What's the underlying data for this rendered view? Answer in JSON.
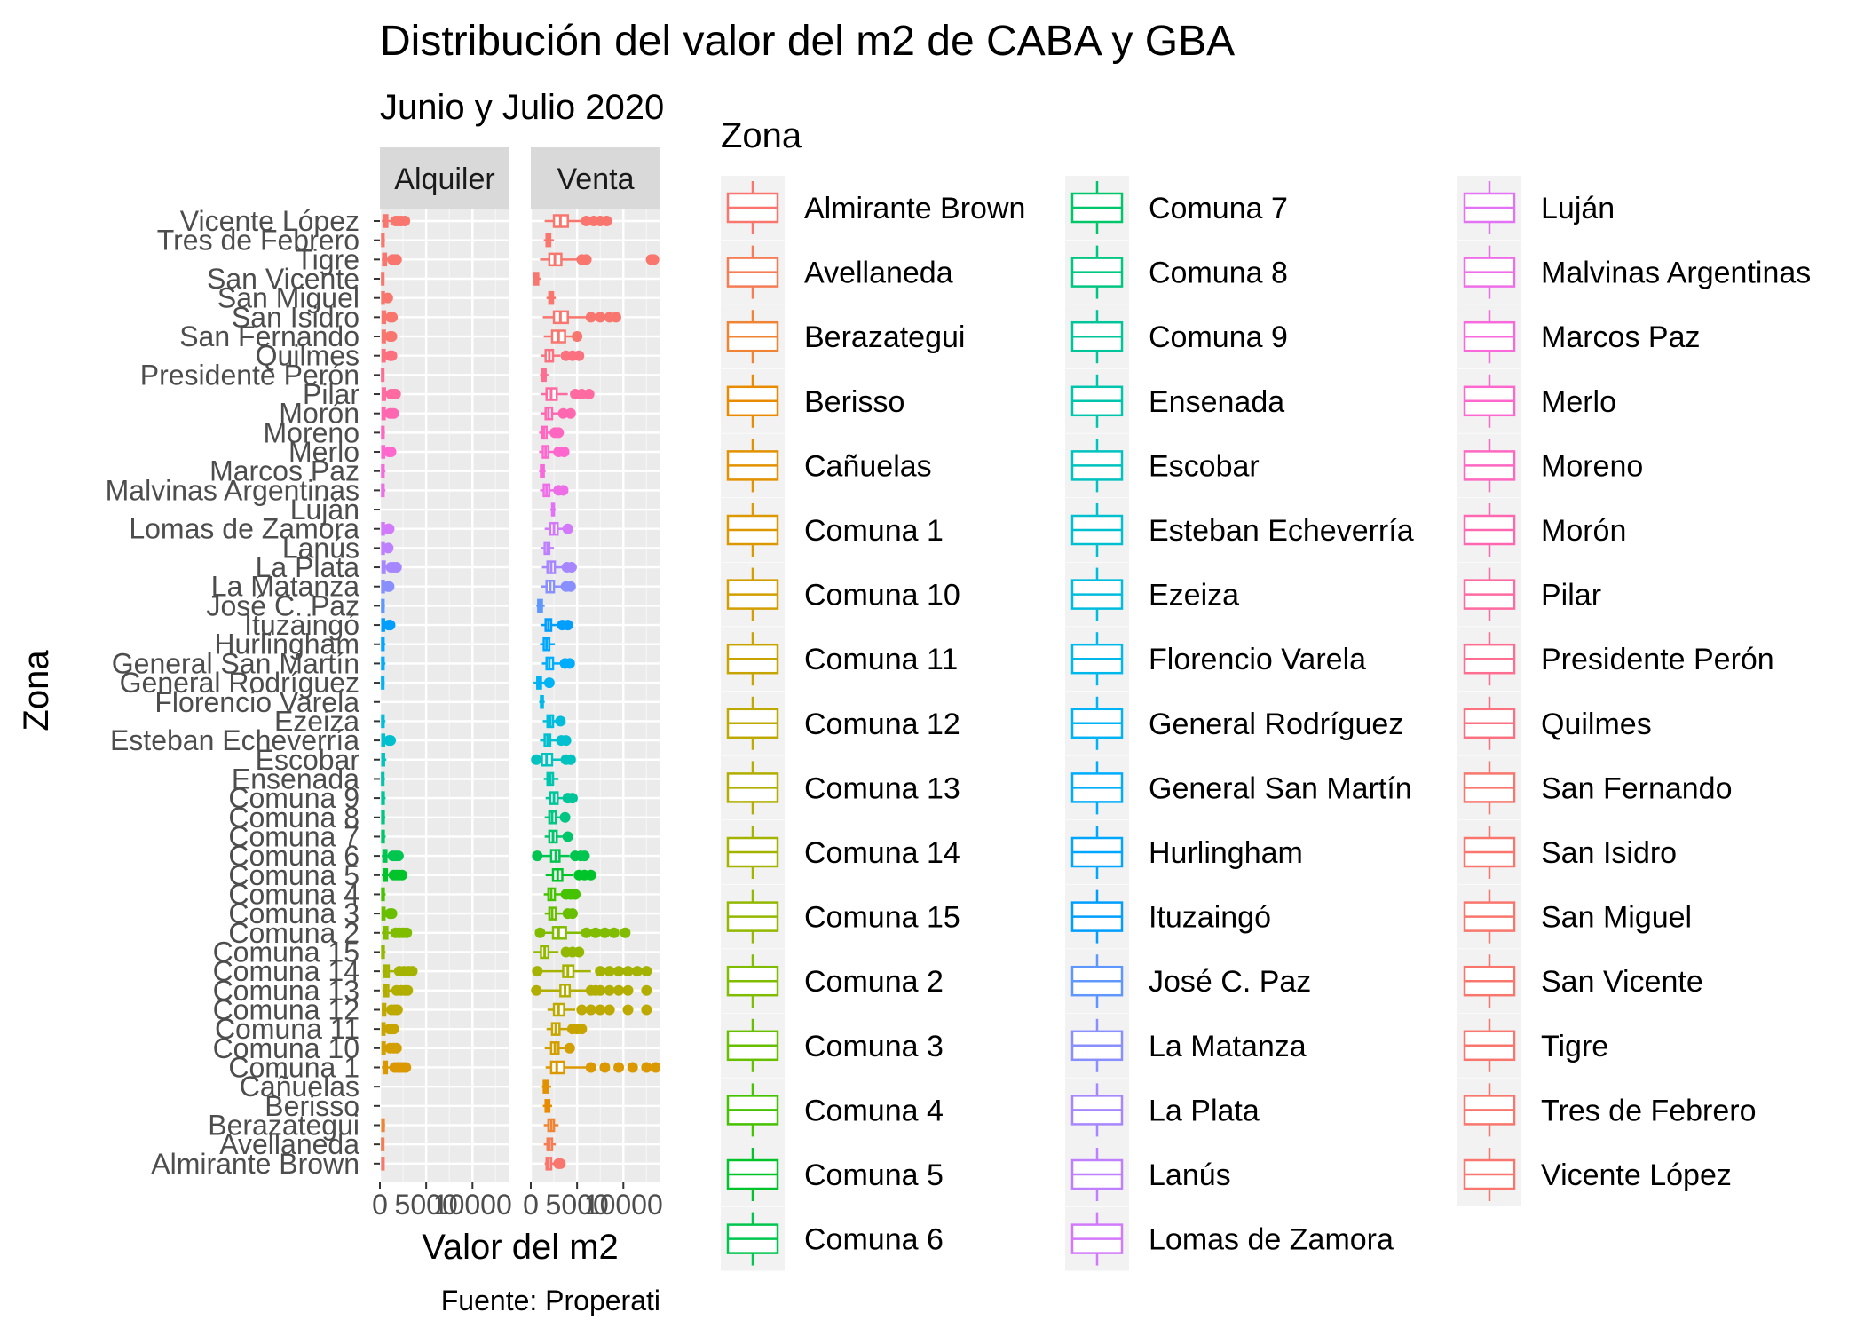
{
  "chart_data": {
    "type": "boxplot",
    "title": "Distribución del valor del m2 de CABA y GBA",
    "subtitle": "Junio y Julio 2020",
    "xlabel": "Valor del m2",
    "ylabel": "Zona",
    "caption": "Fuente: Properati",
    "facets": [
      "Alquiler",
      "Venta"
    ],
    "xlim": [
      0,
      14000
    ],
    "x_ticks": [
      0,
      5000,
      10000
    ],
    "x_tick_labels": [
      "0",
      "5000",
      "10000"
    ],
    "legend": {
      "title": "Zona",
      "position": "right",
      "columns": 3
    },
    "grid": true,
    "categories": [
      "Almirante Brown",
      "Avellaneda",
      "Berazategui",
      "Berisso",
      "Cañuelas",
      "Comuna 1",
      "Comuna 10",
      "Comuna 11",
      "Comuna 12",
      "Comuna 13",
      "Comuna 14",
      "Comuna 15",
      "Comuna 2",
      "Comuna 3",
      "Comuna 4",
      "Comuna 5",
      "Comuna 6",
      "Comuna 7",
      "Comuna 8",
      "Comuna 9",
      "Ensenada",
      "Escobar",
      "Esteban Echeverría",
      "Ezeiza",
      "Florencio Varela",
      "General Rodríguez",
      "General San Martín",
      "Hurlingham",
      "Ituzaingó",
      "José C. Paz",
      "La Matanza",
      "La Plata",
      "Lanús",
      "Lomas de Zamora",
      "Luján",
      "Malvinas Argentinas",
      "Marcos Paz",
      "Merlo",
      "Moreno",
      "Morón",
      "Pilar",
      "Presidente Perón",
      "Quilmes",
      "San Fernando",
      "San Isidro",
      "San Miguel",
      "San Vicente",
      "Tigre",
      "Tres de Febrero",
      "Vicente López"
    ],
    "colors": [
      "#F8766D",
      "#F47D56",
      "#EF8435",
      "#E98B00",
      "#E29200",
      "#DB9800",
      "#D29E00",
      "#C8A400",
      "#BDA900",
      "#B1AE00",
      "#A3B300",
      "#93B800",
      "#80BC00",
      "#68BF00",
      "#45C200",
      "#00C42A",
      "#00C54E",
      "#00C66A",
      "#00C682",
      "#00C598",
      "#00C4AC",
      "#00C2BE",
      "#00BFCE",
      "#00BCDD",
      "#00B8E9",
      "#00B3F4",
      "#00ADFC",
      "#00A6FF",
      "#009EFF",
      "#5F97FF",
      "#898FFF",
      "#A787FF",
      "#BF80FF",
      "#D279FC",
      "#E273F4",
      "#EE6EE8",
      "#F86ADC",
      "#FE68CE",
      "#FF67C0",
      "#FF68B1",
      "#FF6AA1",
      "#FF6D91",
      "#FC717F",
      "#F8766D",
      "#F8766D",
      "#F8766D",
      "#F8766D",
      "#F8766D",
      "#F8766D",
      "#F8766D"
    ],
    "series": [
      {
        "name": "Alquiler",
        "stats": [
          [
            150,
            250,
            320,
            400,
            520,
            []
          ],
          [
            140,
            230,
            300,
            380,
            480,
            []
          ],
          [
            160,
            260,
            330,
            420,
            560,
            []
          ],
          null,
          null,
          [
            200,
            400,
            550,
            750,
            1350,
            [
              1600,
              1900,
              2200,
              2500,
              2800
            ]
          ],
          [
            150,
            280,
            380,
            520,
            880,
            [
              1100,
              1500,
              1800
            ]
          ],
          [
            150,
            280,
            380,
            500,
            850,
            [
              1050,
              1300,
              1500
            ]
          ],
          [
            180,
            320,
            430,
            580,
            1000,
            [
              1250,
              1600,
              1900
            ]
          ],
          [
            250,
            480,
            650,
            900,
            1500,
            [
              1800,
              2300,
              2700,
              3000
            ]
          ],
          [
            250,
            500,
            700,
            950,
            1700,
            [
              2100,
              2600,
              3100,
              3500
            ]
          ],
          [
            150,
            250,
            320,
            420,
            620,
            []
          ],
          [
            200,
            400,
            550,
            800,
            1400,
            [
              1700,
              2100,
              2500,
              2900
            ]
          ],
          [
            150,
            280,
            380,
            500,
            850,
            [
              1100,
              1300
            ]
          ],
          [
            150,
            250,
            320,
            420,
            620,
            []
          ],
          [
            200,
            400,
            550,
            750,
            1200,
            [
              1500,
              1800,
              2100,
              2400
            ]
          ],
          [
            200,
            380,
            520,
            700,
            1100,
            [
              1400,
              1700,
              2000
            ]
          ],
          [
            150,
            250,
            320,
            420,
            620,
            []
          ],
          [
            150,
            250,
            320,
            420,
            600,
            []
          ],
          [
            150,
            250,
            320,
            420,
            620,
            []
          ],
          [
            150,
            230,
            300,
            380,
            550,
            []
          ],
          [
            160,
            260,
            340,
            450,
            700,
            []
          ],
          [
            160,
            260,
            350,
            460,
            800,
            [
              1000,
              1150
            ]
          ],
          [
            150,
            240,
            310,
            400,
            600,
            []
          ],
          null,
          [
            150,
            230,
            300,
            380,
            520,
            []
          ],
          [
            150,
            240,
            310,
            400,
            600,
            []
          ],
          [
            150,
            240,
            310,
            400,
            600,
            []
          ],
          [
            160,
            260,
            340,
            450,
            750,
            [
              950,
              1100
            ]
          ],
          [
            150,
            240,
            310,
            400,
            550,
            []
          ],
          [
            150,
            250,
            330,
            430,
            700,
            [
              850,
              1000
            ]
          ],
          [
            170,
            280,
            380,
            520,
            900,
            [
              1200,
              1500,
              1800
            ]
          ],
          [
            150,
            250,
            330,
            430,
            700,
            [
              900
            ]
          ],
          [
            150,
            250,
            330,
            430,
            700,
            [
              900,
              1000
            ]
          ],
          null,
          [
            150,
            240,
            310,
            400,
            600,
            []
          ],
          [
            150,
            240,
            310,
            400,
            600,
            []
          ],
          [
            160,
            260,
            350,
            460,
            800,
            [
              1000,
              1200
            ]
          ],
          [
            150,
            240,
            310,
            400,
            550,
            []
          ],
          [
            170,
            280,
            380,
            520,
            850,
            [
              1100,
              1300,
              1500
            ]
          ],
          [
            180,
            300,
            400,
            550,
            950,
            [
              1200,
              1500,
              1700
            ]
          ],
          [
            150,
            230,
            300,
            380,
            500,
            []
          ],
          [
            170,
            280,
            380,
            520,
            850,
            [
              1100,
              1300
            ]
          ],
          [
            170,
            290,
            390,
            540,
            900,
            [
              1100,
              1300
            ]
          ],
          [
            170,
            290,
            400,
            560,
            950,
            [
              1150,
              1350
            ]
          ],
          [
            150,
            250,
            330,
            430,
            680,
            [
              850
            ]
          ],
          [
            150,
            230,
            300,
            380,
            500,
            []
          ],
          [
            200,
            350,
            480,
            650,
            1100,
            [
              1350,
              1600,
              1800
            ]
          ],
          [
            150,
            240,
            310,
            400,
            550,
            []
          ],
          [
            200,
            400,
            550,
            800,
            1400,
            [
              1700,
              2000,
              2300,
              2700
            ]
          ]
        ]
      },
      {
        "name": "Venta",
        "stats": [
          [
            1500,
            1700,
            1900,
            2200,
            2700,
            [
              3000,
              3200
            ]
          ],
          [
            1400,
            1800,
            2000,
            2300,
            2700,
            []
          ],
          [
            1400,
            1900,
            2200,
            2500,
            3000,
            []
          ],
          [
            1300,
            1600,
            1800,
            2000,
            2300,
            []
          ],
          [
            1200,
            1400,
            1600,
            1800,
            2200,
            []
          ],
          [
            1600,
            2200,
            2800,
            3600,
            6000,
            [
              6500,
              8000,
              9500,
              11000,
              12500,
              13500
            ]
          ],
          [
            1500,
            2200,
            2600,
            3000,
            3800,
            [
              4200
            ]
          ],
          [
            1700,
            2300,
            2700,
            3100,
            4000,
            [
              4500,
              5000,
              5500
            ]
          ],
          [
            1800,
            2500,
            3000,
            3600,
            4800,
            [
              5500,
              6500,
              7500,
              8500,
              10500,
              12500
            ]
          ],
          [
            400,
            3200,
            3700,
            4200,
            6000,
            [
              600,
              6500,
              7000,
              7500,
              8500,
              9500,
              10500,
              12500
            ]
          ],
          [
            500,
            3500,
            4000,
            4600,
            6500,
            [
              700,
              7500,
              8500,
              9500,
              10500,
              11500,
              12500
            ]
          ],
          [
            300,
            1100,
            1500,
            1900,
            3000,
            [
              3800,
              4500,
              5200
            ]
          ],
          [
            700,
            2400,
            3000,
            3800,
            5500,
            [
              1000,
              6000,
              7000,
              8000,
              9000,
              10200
            ]
          ],
          [
            1500,
            2000,
            2300,
            2700,
            3500,
            [
              4000,
              4500
            ]
          ],
          [
            1400,
            1900,
            2200,
            2600,
            3300,
            [
              3800,
              4300,
              4800
            ]
          ],
          [
            1600,
            2400,
            2900,
            3400,
            4600,
            [
              5200,
              5800,
              6500
            ]
          ],
          [
            400,
            2200,
            2700,
            3100,
            4200,
            [
              700,
              4800,
              5400,
              5800
            ]
          ],
          [
            1500,
            2000,
            2400,
            2800,
            3500,
            [
              4000
            ]
          ],
          [
            1500,
            2000,
            2300,
            2700,
            3400,
            [
              3700
            ]
          ],
          [
            1600,
            2100,
            2500,
            2900,
            3600,
            [
              4000,
              4500
            ]
          ],
          [
            1400,
            1800,
            2100,
            2400,
            3000,
            []
          ],
          [
            400,
            1200,
            1700,
            2300,
            3400,
            [
              600,
              3800,
              4300
            ]
          ],
          [
            1000,
            1500,
            1800,
            2100,
            2800,
            [
              3300,
              3800
            ]
          ],
          [
            1300,
            1800,
            2100,
            2400,
            3000,
            [
              3200
            ]
          ],
          [
            900,
            1100,
            1200,
            1300,
            1500,
            []
          ],
          [
            300,
            700,
            900,
            1100,
            1600,
            [
              2000
            ]
          ],
          [
            1200,
            1700,
            2000,
            2400,
            3200,
            [
              3700,
              4200
            ]
          ],
          [
            1000,
            1400,
            1700,
            2000,
            2600,
            []
          ],
          [
            1100,
            1600,
            1900,
            2200,
            2900,
            [
              3400,
              4000
            ]
          ],
          [
            600,
            800,
            1000,
            1200,
            1500,
            []
          ],
          [
            1100,
            1700,
            2100,
            2500,
            3300,
            [
              3800,
              4300
            ]
          ],
          [
            1200,
            1800,
            2200,
            2600,
            3400,
            [
              3900,
              4400
            ]
          ],
          [
            1100,
            1500,
            1800,
            2000,
            2500,
            []
          ],
          [
            1500,
            2100,
            2500,
            2900,
            3500,
            [
              4000
            ]
          ],
          [
            2100,
            2300,
            2400,
            2500,
            2700,
            []
          ],
          [
            1000,
            1400,
            1700,
            2000,
            2500,
            [
              3000,
              3500
            ]
          ],
          [
            900,
            1100,
            1300,
            1400,
            1600,
            []
          ],
          [
            900,
            1300,
            1600,
            1900,
            2500,
            [
              3000,
              3600
            ]
          ],
          [
            900,
            1200,
            1400,
            1700,
            2200,
            [
              2600,
              3000
            ]
          ],
          [
            1100,
            1600,
            1900,
            2300,
            3000,
            [
              3500,
              4300
            ]
          ],
          [
            1100,
            1700,
            2200,
            2800,
            4000,
            [
              4800,
              5500,
              6300
            ]
          ],
          [
            1000,
            1200,
            1400,
            1600,
            1900,
            []
          ],
          [
            1100,
            1600,
            2000,
            2400,
            3200,
            [
              3800,
              4500,
              5200
            ]
          ],
          [
            1400,
            2300,
            3000,
            3700,
            4500,
            [
              5000
            ]
          ],
          [
            1300,
            2500,
            3200,
            4000,
            6000,
            [
              6500,
              7500,
              8500,
              9200
            ]
          ],
          [
            1700,
            2000,
            2200,
            2400,
            2700,
            []
          ],
          [
            200,
            400,
            600,
            800,
            1100,
            []
          ],
          [
            1000,
            2000,
            2600,
            3300,
            5000,
            [
              5500,
              6000,
              13000,
              13300
            ]
          ],
          [
            1400,
            1700,
            1900,
            2100,
            2500,
            []
          ],
          [
            1500,
            2500,
            3200,
            4000,
            5500,
            [
              6000,
              6800,
              7500,
              8200
            ]
          ]
        ]
      }
    ]
  }
}
